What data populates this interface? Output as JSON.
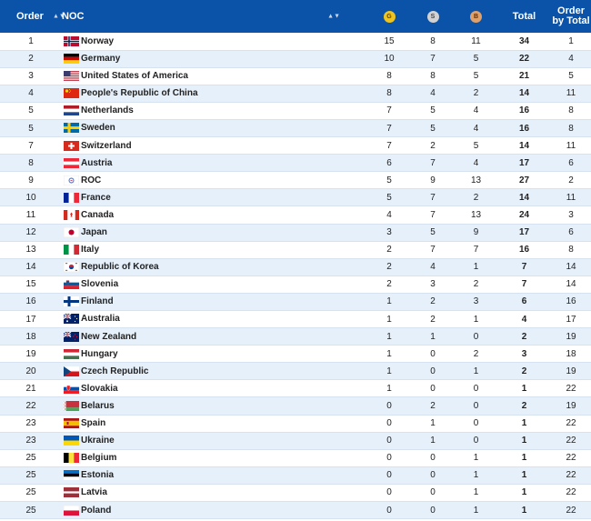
{
  "colors": {
    "header_bg": "#0b53a8",
    "row_alt": "#e6f0fb",
    "gold": "#f0c420",
    "silver": "#c9c9c9",
    "bronze": "#e0a06a"
  },
  "header": {
    "order": "Order",
    "noc": "NOC",
    "gold": "G",
    "silver": "S",
    "bronze": "B",
    "total": "Total",
    "order_by_total": "Order by Total",
    "sort_glyph": "▲▼"
  },
  "rows": [
    {
      "order": "1",
      "noc": "Norway",
      "flag": "norway",
      "gold": "15",
      "silver": "8",
      "bronze": "11",
      "total": "34",
      "order_by_total": "1"
    },
    {
      "order": "2",
      "noc": "Germany",
      "flag": "germany",
      "gold": "10",
      "silver": "7",
      "bronze": "5",
      "total": "22",
      "order_by_total": "4"
    },
    {
      "order": "3",
      "noc": "United States of America",
      "flag": "usa",
      "gold": "8",
      "silver": "8",
      "bronze": "5",
      "total": "21",
      "order_by_total": "5"
    },
    {
      "order": "4",
      "noc": "People's Republic of China",
      "flag": "china",
      "gold": "8",
      "silver": "4",
      "bronze": "2",
      "total": "14",
      "order_by_total": "11"
    },
    {
      "order": "5",
      "noc": "Netherlands",
      "flag": "netherlands",
      "gold": "7",
      "silver": "5",
      "bronze": "4",
      "total": "16",
      "order_by_total": "8"
    },
    {
      "order": "5",
      "noc": "Sweden",
      "flag": "sweden",
      "gold": "7",
      "silver": "5",
      "bronze": "4",
      "total": "16",
      "order_by_total": "8"
    },
    {
      "order": "7",
      "noc": "Switzerland",
      "flag": "switzerland",
      "gold": "7",
      "silver": "2",
      "bronze": "5",
      "total": "14",
      "order_by_total": "11"
    },
    {
      "order": "8",
      "noc": "Austria",
      "flag": "austria",
      "gold": "6",
      "silver": "7",
      "bronze": "4",
      "total": "17",
      "order_by_total": "6"
    },
    {
      "order": "9",
      "noc": "ROC",
      "flag": "roc",
      "gold": "5",
      "silver": "9",
      "bronze": "13",
      "total": "27",
      "order_by_total": "2"
    },
    {
      "order": "10",
      "noc": "France",
      "flag": "france",
      "gold": "5",
      "silver": "7",
      "bronze": "2",
      "total": "14",
      "order_by_total": "11"
    },
    {
      "order": "11",
      "noc": "Canada",
      "flag": "canada",
      "gold": "4",
      "silver": "7",
      "bronze": "13",
      "total": "24",
      "order_by_total": "3"
    },
    {
      "order": "12",
      "noc": "Japan",
      "flag": "japan",
      "gold": "3",
      "silver": "5",
      "bronze": "9",
      "total": "17",
      "order_by_total": "6"
    },
    {
      "order": "13",
      "noc": "Italy",
      "flag": "italy",
      "gold": "2",
      "silver": "7",
      "bronze": "7",
      "total": "16",
      "order_by_total": "8"
    },
    {
      "order": "14",
      "noc": "Republic of Korea",
      "flag": "korea",
      "gold": "2",
      "silver": "4",
      "bronze": "1",
      "total": "7",
      "order_by_total": "14"
    },
    {
      "order": "15",
      "noc": "Slovenia",
      "flag": "slovenia",
      "gold": "2",
      "silver": "3",
      "bronze": "2",
      "total": "7",
      "order_by_total": "14"
    },
    {
      "order": "16",
      "noc": "Finland",
      "flag": "finland",
      "gold": "1",
      "silver": "2",
      "bronze": "3",
      "total": "6",
      "order_by_total": "16"
    },
    {
      "order": "17",
      "noc": "Australia",
      "flag": "australia",
      "gold": "1",
      "silver": "2",
      "bronze": "1",
      "total": "4",
      "order_by_total": "17"
    },
    {
      "order": "18",
      "noc": "New Zealand",
      "flag": "newzealand",
      "gold": "1",
      "silver": "1",
      "bronze": "0",
      "total": "2",
      "order_by_total": "19"
    },
    {
      "order": "19",
      "noc": "Hungary",
      "flag": "hungary",
      "gold": "1",
      "silver": "0",
      "bronze": "2",
      "total": "3",
      "order_by_total": "18"
    },
    {
      "order": "20",
      "noc": "Czech Republic",
      "flag": "czech",
      "gold": "1",
      "silver": "0",
      "bronze": "1",
      "total": "2",
      "order_by_total": "19"
    },
    {
      "order": "21",
      "noc": "Slovakia",
      "flag": "slovakia",
      "gold": "1",
      "silver": "0",
      "bronze": "0",
      "total": "1",
      "order_by_total": "22"
    },
    {
      "order": "22",
      "noc": "Belarus",
      "flag": "belarus",
      "gold": "0",
      "silver": "2",
      "bronze": "0",
      "total": "2",
      "order_by_total": "19"
    },
    {
      "order": "23",
      "noc": "Spain",
      "flag": "spain",
      "gold": "0",
      "silver": "1",
      "bronze": "0",
      "total": "1",
      "order_by_total": "22"
    },
    {
      "order": "23",
      "noc": "Ukraine",
      "flag": "ukraine",
      "gold": "0",
      "silver": "1",
      "bronze": "0",
      "total": "1",
      "order_by_total": "22"
    },
    {
      "order": "25",
      "noc": "Belgium",
      "flag": "belgium",
      "gold": "0",
      "silver": "0",
      "bronze": "1",
      "total": "1",
      "order_by_total": "22"
    },
    {
      "order": "25",
      "noc": "Estonia",
      "flag": "estonia",
      "gold": "0",
      "silver": "0",
      "bronze": "1",
      "total": "1",
      "order_by_total": "22"
    },
    {
      "order": "25",
      "noc": "Latvia",
      "flag": "latvia",
      "gold": "0",
      "silver": "0",
      "bronze": "1",
      "total": "1",
      "order_by_total": "22"
    },
    {
      "order": "25",
      "noc": "Poland",
      "flag": "poland",
      "gold": "0",
      "silver": "0",
      "bronze": "1",
      "total": "1",
      "order_by_total": "22"
    }
  ]
}
